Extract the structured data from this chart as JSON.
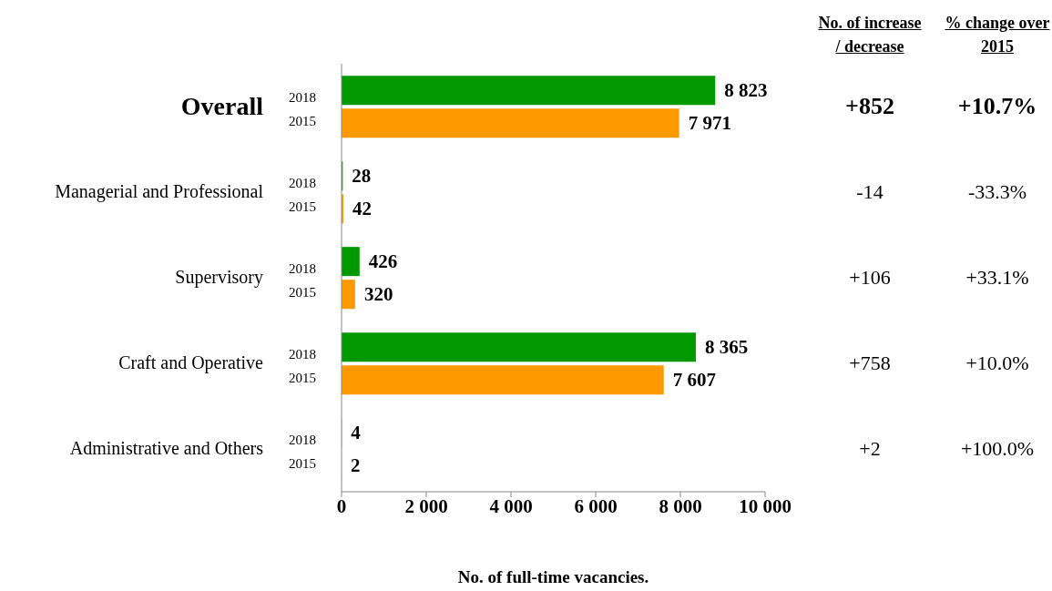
{
  "chart_data": {
    "type": "bar",
    "orientation": "horizontal",
    "categories": [
      "Overall",
      "Managerial and Professional",
      "Supervisory",
      "Craft and Operative",
      "Administrative and Others"
    ],
    "series": [
      {
        "name": "2018",
        "color": "#009900",
        "values": [
          8823,
          28,
          426,
          8365,
          4
        ],
        "value_labels": [
          "8 823",
          "28",
          "426",
          "8 365",
          "4"
        ]
      },
      {
        "name": "2015",
        "color": "#ff9900",
        "values": [
          7971,
          42,
          320,
          7607,
          2
        ],
        "value_labels": [
          "7 971",
          "42",
          "320",
          "7 607",
          "2"
        ]
      }
    ],
    "xlabel": "No. of full-time  vacancies.",
    "xlim": [
      0,
      10000
    ],
    "xticks": [
      0,
      {
        "value": 2000,
        "label": "2 000"
      },
      {
        "value": 4000,
        "label": "4 000"
      },
      {
        "value": 6000,
        "label": "6 000"
      },
      {
        "value": 8000,
        "label": "8 000"
      },
      {
        "value": 10000,
        "label": "10 000"
      }
    ],
    "grid": false,
    "legend": false,
    "annotations": [
      "No. of increase / decrease",
      "% change over 2015",
      "+852",
      "+10.7%",
      "-14",
      "-33.3%",
      "+106",
      "+33.1%",
      "+758",
      "+10.0%",
      "+2",
      "+100.0%"
    ]
  }
}
